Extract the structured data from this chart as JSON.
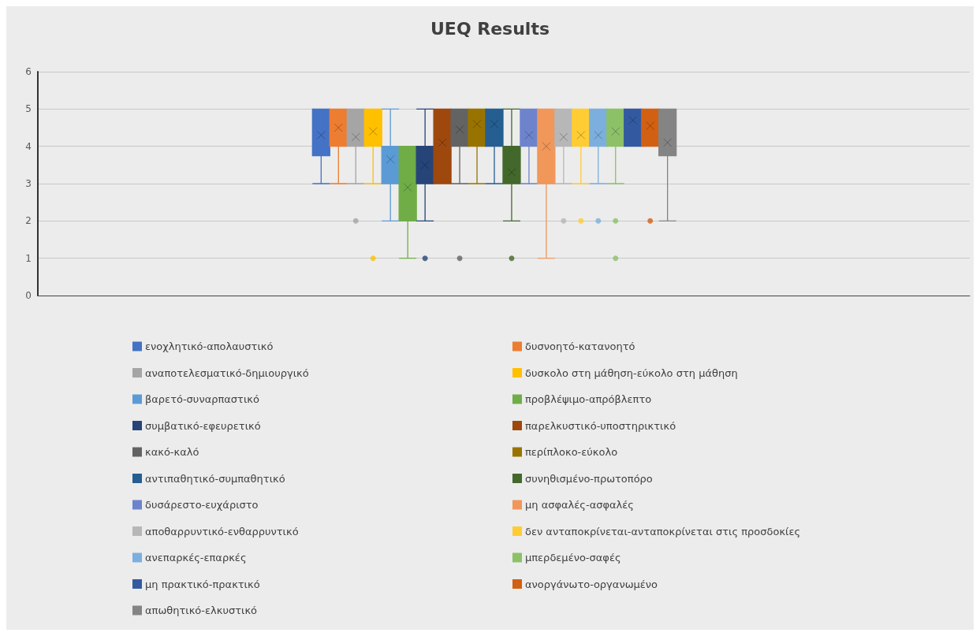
{
  "chart_data": {
    "type": "box",
    "title": "UEQ Results",
    "categories": [
      null
    ],
    "ylim": [
      0,
      6
    ],
    "yticks": [
      0,
      1,
      2,
      3,
      4,
      5,
      6
    ],
    "grid": "y",
    "legend": "bottom",
    "series": [
      {
        "name": "ενοχλητικό-απολαυστικό",
        "color": "#4472c4",
        "boxes": [
          {
            "low": 3,
            "q1": 3.75,
            "median": 4,
            "q3": 5,
            "high": 5,
            "mean": 4.3
          }
        ]
      },
      {
        "name": "δυσνοητό-κατανοητό",
        "color": "#ed7d31",
        "boxes": [
          {
            "low": 3,
            "q1": 4,
            "median": 4.5,
            "q3": 5,
            "high": 5,
            "mean": 4.5
          }
        ]
      },
      {
        "name": "αναποτελεσματικό-δημιουργικό",
        "color": "#a5a5a5",
        "boxes": [
          {
            "low": 3,
            "q1": 4,
            "median": 4.5,
            "q3": 5,
            "high": 5,
            "mean": 4.25,
            "outliers": [
              2
            ]
          }
        ]
      },
      {
        "name": "δυσκολο στη μάθηση-εύκολο στη μάθηση",
        "color": "#ffc000",
        "boxes": [
          {
            "low": 3,
            "q1": 4,
            "median": 4.5,
            "q3": 5,
            "high": 5,
            "mean": 4.4,
            "outliers": [
              1
            ]
          }
        ]
      },
      {
        "name": "βαρετό-συναρπαστικό",
        "color": "#5b9bd5",
        "boxes": [
          {
            "low": 2,
            "q1": 3,
            "median": 4,
            "q3": 4,
            "high": 5,
            "mean": 3.65
          }
        ]
      },
      {
        "name": "προβλέψιμο-απρόβλεπτο",
        "color": "#70ad47",
        "boxes": [
          {
            "low": 1,
            "q1": 2,
            "median": 3,
            "q3": 4,
            "high": 4,
            "mean": 2.9
          }
        ]
      },
      {
        "name": "συμβατικό-εφευρετικό",
        "color": "#264478",
        "boxes": [
          {
            "low": 2,
            "q1": 3,
            "median": 3.5,
            "q3": 4,
            "high": 5,
            "mean": 3.5,
            "outliers": [
              1
            ]
          }
        ]
      },
      {
        "name": "παρελκυστικό-υποστηρικτικό",
        "color": "#9e480e",
        "boxes": [
          {
            "low": 3,
            "q1": 3,
            "median": 4,
            "q3": 5,
            "high": 5,
            "mean": 4.1
          }
        ]
      },
      {
        "name": "κακό-καλό",
        "color": "#636363",
        "boxes": [
          {
            "low": 3,
            "q1": 4,
            "median": 4.5,
            "q3": 5,
            "high": 5,
            "mean": 4.45,
            "outliers": [
              1
            ]
          }
        ]
      },
      {
        "name": "περίπλοκο-εύκολο",
        "color": "#997300",
        "boxes": [
          {
            "low": 3,
            "q1": 4,
            "median": 5,
            "q3": 5,
            "high": 5,
            "mean": 4.6
          }
        ]
      },
      {
        "name": "αντιπαθητικό-συμπαθητικό",
        "color": "#255e91",
        "boxes": [
          {
            "low": 3,
            "q1": 4,
            "median": 5,
            "q3": 5,
            "high": 5,
            "mean": 4.6
          }
        ]
      },
      {
        "name": "συνηθισμένο-πρωτοπόρο",
        "color": "#43682b",
        "boxes": [
          {
            "low": 2,
            "q1": 3,
            "median": 3,
            "q3": 4,
            "high": 5,
            "mean": 3.3,
            "outliers": [
              1
            ]
          }
        ]
      },
      {
        "name": "δυσάρεστο-ευχάριστο",
        "color": "#6d84cc",
        "boxes": [
          {
            "low": 3,
            "q1": 4,
            "median": 4,
            "q3": 5,
            "high": 5,
            "mean": 4.3
          }
        ]
      },
      {
        "name": "μη ασφαλές-ασφαλές",
        "color": "#f1975a",
        "boxes": [
          {
            "low": 1,
            "q1": 3,
            "median": 4.5,
            "q3": 5,
            "high": 5,
            "mean": 4
          }
        ]
      },
      {
        "name": "αποθαρρυντικό-ενθαρρυντικό",
        "color": "#b7b7b7",
        "boxes": [
          {
            "low": 3,
            "q1": 4,
            "median": 4,
            "q3": 5,
            "high": 5,
            "mean": 4.25,
            "outliers": [
              2
            ]
          }
        ]
      },
      {
        "name": "δεν ανταποκρίνεται-ανταποκρίνεται στις προσδοκίες",
        "color": "#ffcd33",
        "boxes": [
          {
            "low": 3,
            "q1": 4,
            "median": 4,
            "q3": 5,
            "high": 5,
            "mean": 4.3,
            "outliers": [
              2
            ]
          }
        ]
      },
      {
        "name": "ανεπαρκές-επαρκές",
        "color": "#7cafdd",
        "boxes": [
          {
            "low": 3,
            "q1": 4,
            "median": 4,
            "q3": 5,
            "high": 5,
            "mean": 4.3,
            "outliers": [
              2
            ]
          }
        ]
      },
      {
        "name": "μπερδεμένο-σαφές",
        "color": "#8cc168",
        "boxes": [
          {
            "low": 3,
            "q1": 4,
            "median": 4.5,
            "q3": 5,
            "high": 5,
            "mean": 4.4,
            "outliers": [
              2,
              1
            ]
          }
        ]
      },
      {
        "name": "μη πρακτικό-πρακτικό",
        "color": "#335aa1",
        "boxes": [
          {
            "low": 4,
            "q1": 4,
            "median": 5,
            "q3": 5,
            "high": 5,
            "mean": 4.7
          }
        ]
      },
      {
        "name": "ανοργάνωτο-οργανωμένο",
        "color": "#d26012",
        "boxes": [
          {
            "low": 4,
            "q1": 4,
            "median": 5,
            "q3": 5,
            "high": 5,
            "mean": 4.55,
            "outliers": [
              2
            ]
          }
        ]
      },
      {
        "name": "απωθητικό-ελκυστικό",
        "color": "#848484",
        "boxes": [
          {
            "low": 2,
            "q1": 3.75,
            "median": 4,
            "q3": 5,
            "high": 5,
            "mean": 4.1
          }
        ]
      }
    ]
  }
}
